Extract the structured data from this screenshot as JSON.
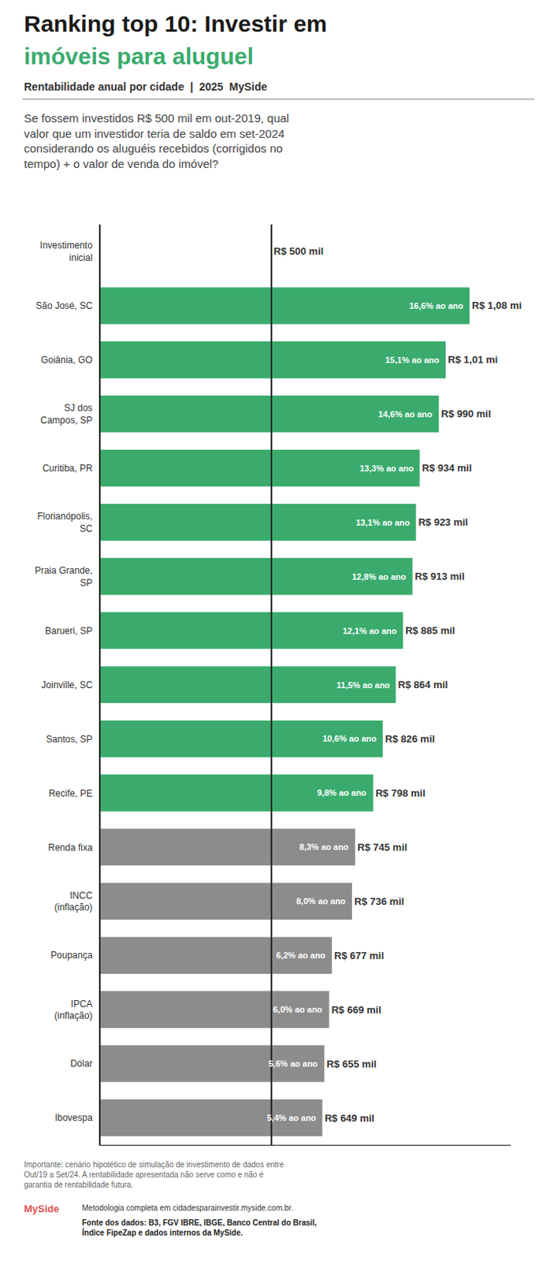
{
  "chart_data": {
    "type": "bar",
    "orientation": "horizontal",
    "title": "Ranking top 10: Investir em\nimóveis para aluguel",
    "subtitle": "Rentabilidade anual por cidade  |  2025  MySide",
    "question": "Se fossem investidos R$ 500 mil em out-2019, qual\nvalor que um investidor teria de saldo em set-2024\nconsiderando os aluguéis recebidos (corrigidos no\ntempo) + o valor de venda do imóvel?",
    "categories": [
      "Investimento\ninicial",
      "São José, SC",
      "Goiânia, GO",
      "SJ dos\nCampos, SP",
      "Curitiba, PR",
      "Florianópolis,\nSC",
      "Praia Grande,\nSP",
      "Barueri, SP",
      "Joinville, SC",
      "Santos, SP",
      "Recife, PE",
      "Renda fixa",
      "INCC\n(inflação)",
      "Poupança",
      "IPCA\n(inflação)",
      "Dólar",
      "Ibovespa"
    ],
    "values": [
      500,
      1080,
      1010,
      990,
      934,
      923,
      913,
      885,
      864,
      826,
      798,
      745,
      736,
      677,
      669,
      655,
      649
    ],
    "value_labels": [
      "R$ 500 mil",
      "R$ 1,08 mi",
      "R$ 1,01 mi",
      "R$ 990 mil",
      "R$ 934 mil",
      "R$ 923 mil",
      "R$ 913 mil",
      "R$ 885 mil",
      "R$ 864 mil",
      "R$ 826 mil",
      "R$ 798 mil",
      "R$ 745 mil",
      "R$ 736 mil",
      "R$ 677 mil",
      "R$ 669 mil",
      "R$ 655 mil",
      "R$ 649 mil"
    ],
    "rates": [
      null,
      "16,6% ao ano",
      "15,1% ao ano",
      "14,6% ao ano",
      "13,3% ao ano",
      "13,1% ao ano",
      "12,8% ao ano",
      "12,1% ao ano",
      "11,5% ao ano",
      "10,6% ao ano",
      "9,8% ao ano",
      "8,3% ao ano",
      "8,0% ao ano",
      "6,2% ao ano",
      "6,0% ao ano",
      "5,6% ao ano",
      "5,4% ao ano"
    ],
    "colors": [
      "#ffffff",
      "#3aab6d",
      "#3aab6d",
      "#3aab6d",
      "#3aab6d",
      "#3aab6d",
      "#3aab6d",
      "#3aab6d",
      "#3aab6d",
      "#3aab6d",
      "#3aab6d",
      "#8c8c8c",
      "#8c8c8c",
      "#8c8c8c",
      "#8c8c8c",
      "#8c8c8c",
      "#8c8c8c"
    ],
    "reference_line": 500,
    "xlim": [
      0,
      1200
    ],
    "tick_labels": "y",
    "data_labels": true,
    "grid": false,
    "footer_note": "Importante: cenário hipotético de simulação de investimento de dados entre\nOut/19 a Set/24. A rentabilidade apresentada não serve como e não é\ngarantia de rentabilidade futura.",
    "footer_brand": "MySide",
    "footer_methodology": "Metodologia completa em cidadesparainvestir.myside.com.br.",
    "footer_source": "Fonte dos dados: B3, FGV IBRE, IBGE, Banco Central do Brasil,\nÍndice FipeZap e dados internos da MySide."
  }
}
